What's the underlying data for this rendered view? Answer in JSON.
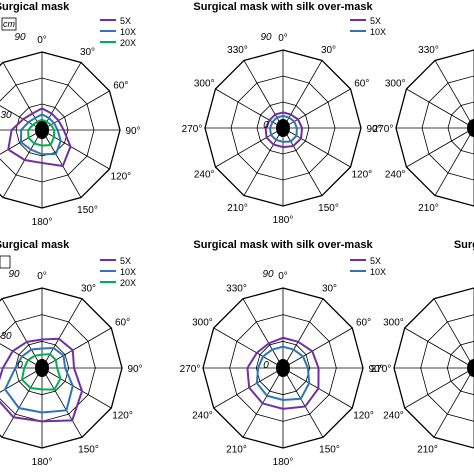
{
  "colors": {
    "5X": "#7030a0",
    "10X": "#2e75b6",
    "20X": "#00b050",
    "grid": "#000000",
    "center": "#000000"
  },
  "chart_data": [
    {
      "type": "radar",
      "title": "Surgical mask",
      "rmax": 90,
      "radial_ticks": [
        "90",
        "30"
      ],
      "angles": [
        0,
        30,
        60,
        90,
        120,
        150,
        180,
        210,
        240,
        270,
        300,
        330
      ],
      "angle_labels": [
        "0°",
        "30°",
        "60°",
        "90°",
        "120°",
        "150°",
        "180°",
        "",
        "",
        "",
        "",
        ""
      ],
      "series": [
        {
          "name": "5X",
          "color_key": "5X",
          "values": [
            25,
            22,
            22,
            25,
            38,
            48,
            38,
            40,
            45,
            35,
            25,
            22
          ]
        },
        {
          "name": "10X",
          "color_key": "10X",
          "values": [
            18,
            16,
            16,
            18,
            25,
            32,
            28,
            26,
            28,
            24,
            18,
            16
          ]
        },
        {
          "name": "20X",
          "color_key": "20X",
          "values": [
            12,
            11,
            12,
            14,
            16,
            20,
            18,
            18,
            18,
            16,
            12,
            11
          ]
        }
      ],
      "extra_text": "cm"
    },
    {
      "type": "radar",
      "title": "Surgical mask with silk over-mask",
      "rmax": 90,
      "radial_ticks": [
        "90",
        "0"
      ],
      "angles": [
        0,
        30,
        60,
        90,
        120,
        150,
        180,
        210,
        240,
        270,
        300,
        330
      ],
      "angle_labels": [
        "0°",
        "30°",
        "60°",
        "90°",
        "120°",
        "150°",
        "180°",
        "210°",
        "240°",
        "270°",
        "300°",
        "330°"
      ],
      "series": [
        {
          "name": "5X",
          "color_key": "5X",
          "values": [
            18,
            18,
            20,
            22,
            24,
            24,
            22,
            22,
            22,
            20,
            18,
            18
          ]
        },
        {
          "name": "10X",
          "color_key": "10X",
          "values": [
            14,
            14,
            15,
            16,
            18,
            18,
            16,
            16,
            16,
            15,
            14,
            14
          ]
        }
      ]
    },
    {
      "type": "radar",
      "title": "",
      "rmax": 90,
      "radial_ticks": [],
      "angles": [
        0,
        30,
        60,
        90,
        120,
        150,
        180,
        210,
        240,
        270,
        300,
        330
      ],
      "angle_labels": [
        "",
        "",
        "",
        "",
        "",
        "",
        "",
        "210°",
        "240°",
        "270°",
        "300°",
        "330°"
      ],
      "series": []
    },
    {
      "type": "radar",
      "title": "Surgical mask",
      "rmax": 90,
      "radial_ticks": [
        "90",
        "30",
        "0"
      ],
      "angles": [
        0,
        30,
        60,
        90,
        120,
        150,
        180,
        210,
        240,
        270,
        300,
        330
      ],
      "angle_labels": [
        "0°",
        "30°",
        "60°",
        "90°",
        "120°",
        "150°",
        "180°",
        "",
        "",
        "",
        "",
        ""
      ],
      "series": [
        {
          "name": "5X",
          "color_key": "5X",
          "values": [
            32,
            38,
            40,
            36,
            52,
            68,
            60,
            64,
            62,
            44,
            38,
            34
          ]
        },
        {
          "name": "10X",
          "color_key": "10X",
          "values": [
            22,
            26,
            28,
            26,
            40,
            55,
            50,
            52,
            48,
            30,
            26,
            24
          ]
        },
        {
          "name": "20X",
          "color_key": "20X",
          "values": [
            15,
            18,
            18,
            17,
            24,
            28,
            24,
            26,
            26,
            20,
            18,
            16
          ]
        }
      ]
    },
    {
      "type": "radar",
      "title": "Surgical mask with silk over-mask",
      "rmax": 90,
      "radial_ticks": [
        "90",
        "0"
      ],
      "angles": [
        0,
        30,
        60,
        90,
        120,
        150,
        180,
        210,
        240,
        270,
        300,
        330
      ],
      "angle_labels": [
        "0°",
        "30°",
        "60°",
        "90°",
        "120°",
        "150°",
        "180°",
        "210°",
        "240°",
        "270°",
        "300°",
        "330°"
      ],
      "series": [
        {
          "name": "5X",
          "color_key": "5X",
          "values": [
            34,
            34,
            38,
            40,
            46,
            50,
            46,
            46,
            44,
            40,
            34,
            32
          ]
        },
        {
          "name": "10X",
          "color_key": "10X",
          "values": [
            24,
            24,
            26,
            28,
            34,
            40,
            36,
            36,
            34,
            28,
            26,
            24
          ]
        }
      ]
    },
    {
      "type": "radar",
      "title": "Surgica",
      "rmax": 90,
      "radial_ticks": [],
      "angles": [
        0,
        30,
        60,
        90,
        120,
        150,
        180,
        210,
        240,
        270,
        300,
        330
      ],
      "angle_labels": [
        "",
        "",
        "",
        "",
        "",
        "",
        "",
        "210°",
        "240°",
        "270°",
        "300°",
        ""
      ],
      "series": []
    }
  ]
}
